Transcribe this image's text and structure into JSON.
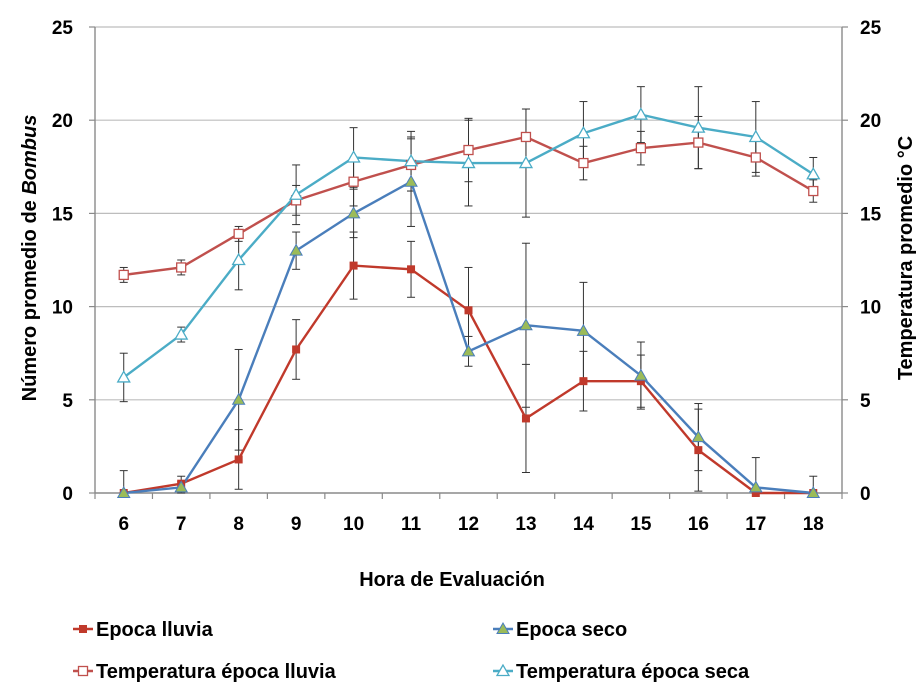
{
  "chart_data": {
    "type": "line",
    "xlabel": "Hora de Evaluación",
    "ylabel_left_prefix": "Número promedio de ",
    "ylabel_left_italic": "Bombus",
    "ylabel_right": "Temperatura promedio °C",
    "x": [
      6,
      7,
      8,
      9,
      10,
      11,
      12,
      13,
      14,
      15,
      16,
      17,
      18
    ],
    "ylim_left": [
      0,
      25
    ],
    "ylim_right": [
      0,
      25
    ],
    "y_ticks_left": [
      0,
      5,
      10,
      15,
      20,
      25
    ],
    "y_ticks_right": [
      0,
      5,
      10,
      15,
      20,
      25
    ],
    "grid": "horizontal",
    "legend_position": "bottom",
    "series": [
      {
        "name": "Epoca lluvia",
        "color": "#c0392b",
        "marker": "square-filled",
        "axis": "left",
        "values": [
          0,
          0.5,
          1.8,
          7.7,
          12.2,
          12.0,
          9.8,
          4.0,
          6.0,
          6.0,
          2.3,
          0,
          0
        ],
        "error": [
          1.2,
          0.4,
          1.6,
          1.6,
          1.8,
          1.5,
          2.3,
          2.9,
          1.6,
          1.4,
          2.2,
          0,
          0.9
        ]
      },
      {
        "name": "Epoca seco",
        "color": "#4a7ebb",
        "marker": "triangle-filled",
        "axis": "left",
        "values": [
          0,
          0.3,
          5.0,
          13.0,
          15.0,
          16.7,
          7.6,
          9.0,
          8.7,
          6.3,
          3.0,
          0.3,
          0
        ],
        "error": [
          0,
          0.3,
          2.7,
          1.0,
          1.3,
          2.4,
          0.8,
          4.4,
          2.6,
          1.8,
          1.8,
          1.6,
          0
        ]
      },
      {
        "name": "Temperatura época lluvia",
        "color": "#c0504d",
        "marker": "square-open",
        "axis": "right",
        "values": [
          11.7,
          12.1,
          13.9,
          15.7,
          16.7,
          17.6,
          18.4,
          19.1,
          17.7,
          18.5,
          18.8,
          18.0,
          16.2
        ],
        "error": [
          0.4,
          0.4,
          0.4,
          0.8,
          1.3,
          1.4,
          1.7,
          1.5,
          0.9,
          0.9,
          1.4,
          1.0,
          0.6
        ]
      },
      {
        "name": "Temperatura época seca",
        "color": "#4bacc6",
        "marker": "triangle-open",
        "axis": "right",
        "values": [
          6.2,
          8.5,
          12.5,
          16.0,
          18.0,
          17.8,
          17.7,
          17.7,
          19.3,
          20.3,
          19.6,
          19.1,
          17.1
        ],
        "error": [
          1.3,
          0.4,
          1.6,
          1.6,
          1.6,
          1.6,
          2.3,
          2.9,
          1.7,
          1.5,
          2.2,
          1.9,
          0.9
        ]
      }
    ]
  }
}
